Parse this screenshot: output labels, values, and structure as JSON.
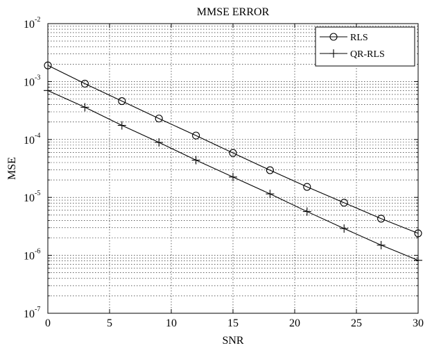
{
  "chart_data": {
    "type": "line",
    "title": "MMSE ERROR",
    "xlabel": "SNR",
    "ylabel": "MSE",
    "xlim": [
      0,
      30
    ],
    "ylim": [
      1e-07,
      0.01
    ],
    "yscale": "log",
    "grid": "major-and-minor",
    "legend_position": "top-right",
    "x_ticks": [
      0,
      5,
      10,
      15,
      20,
      25,
      30
    ],
    "y_tick_exponents": [
      -7,
      -6,
      -5,
      -4,
      -3,
      -2
    ],
    "y_tick_base": "10",
    "x": [
      0,
      3,
      6,
      9,
      12,
      15,
      18,
      21,
      24,
      27,
      30
    ],
    "series": [
      {
        "name": "RLS",
        "marker": "circle",
        "values": [
          0.0019,
          0.00092,
          0.00046,
          0.00023,
          0.000117,
          5.85e-05,
          2.95e-05,
          1.52e-05,
          8.1e-06,
          4.3e-06,
          2.4e-06
        ]
      },
      {
        "name": "QR-RLS",
        "marker": "plus",
        "values": [
          0.0007,
          0.00036,
          0.000175,
          8.9e-05,
          4.4e-05,
          2.25e-05,
          1.15e-05,
          5.7e-06,
          2.9e-06,
          1.5e-06,
          8.2e-07
        ]
      }
    ]
  }
}
